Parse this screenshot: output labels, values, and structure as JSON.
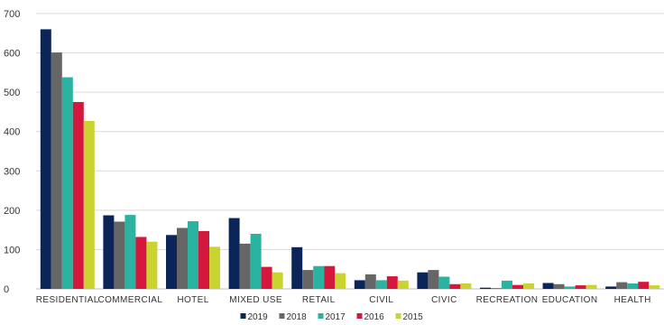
{
  "chart_data": {
    "type": "bar",
    "title": "",
    "xlabel": "",
    "ylabel": "",
    "ylim": [
      0,
      700
    ],
    "yticks": [
      0,
      100,
      200,
      300,
      400,
      500,
      600,
      700
    ],
    "grid": true,
    "legend_position": "bottom-center",
    "categories": [
      "RESIDENTIAL",
      "COMMERCIAL",
      "HOTEL",
      "MIXED USE",
      "RETAIL",
      "CIVIL",
      "CIVIC",
      "RECREATION",
      "EDUCATION",
      "HEALTH"
    ],
    "series": [
      {
        "name": "2019",
        "color": "#0b2559",
        "values": [
          660,
          187,
          137,
          180,
          106,
          22,
          42,
          3,
          15,
          6
        ]
      },
      {
        "name": "2018",
        "color": "#666666",
        "values": [
          601,
          171,
          155,
          115,
          48,
          37,
          48,
          2,
          12,
          17
        ]
      },
      {
        "name": "2017",
        "color": "#2ab3a0",
        "values": [
          538,
          188,
          172,
          140,
          58,
          22,
          31,
          21,
          6,
          14
        ]
      },
      {
        "name": "2016",
        "color": "#d4173c",
        "values": [
          475,
          132,
          147,
          56,
          58,
          32,
          12,
          10,
          9,
          18
        ]
      },
      {
        "name": "2015",
        "color": "#c9d431",
        "values": [
          427,
          120,
          107,
          42,
          40,
          21,
          14,
          14,
          10,
          9
        ]
      }
    ]
  }
}
